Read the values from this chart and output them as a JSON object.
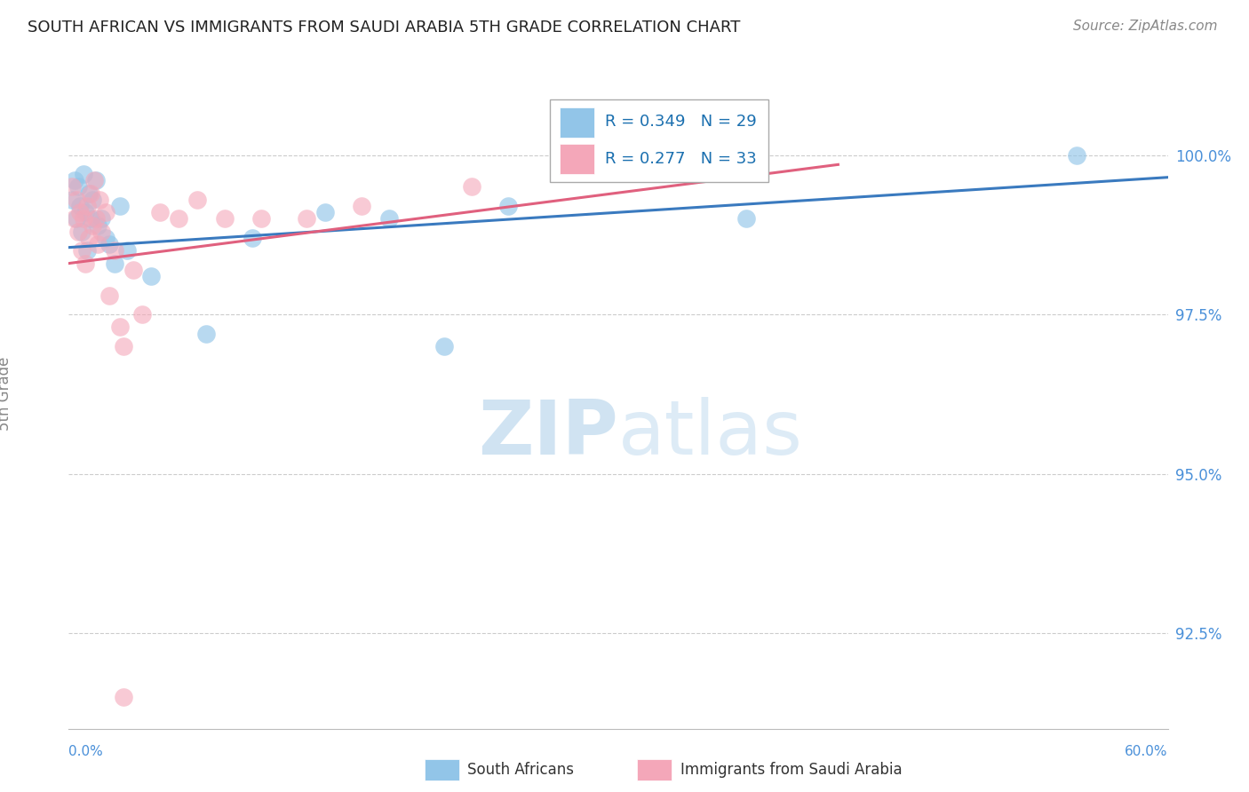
{
  "title": "SOUTH AFRICAN VS IMMIGRANTS FROM SAUDI ARABIA 5TH GRADE CORRELATION CHART",
  "source": "Source: ZipAtlas.com",
  "ylabel": "5th Grade",
  "yticks": [
    100.0,
    97.5,
    95.0,
    92.5
  ],
  "ytick_labels": [
    "100.0%",
    "97.5%",
    "95.0%",
    "92.5%"
  ],
  "xmin": 0.0,
  "xmax": 60.0,
  "ymin": 91.0,
  "ymax": 101.5,
  "blue_R": 0.349,
  "blue_N": 29,
  "pink_R": 0.277,
  "pink_N": 33,
  "blue_color": "#92c5e8",
  "pink_color": "#f4a7b9",
  "blue_line_color": "#3a7abf",
  "pink_line_color": "#e0607e",
  "title_color": "#222222",
  "source_color": "#888888",
  "ylabel_color": "#888888",
  "grid_color": "#cccccc",
  "background_color": "#ffffff",
  "watermark_color": "#dce9f5",
  "south_africans_x": [
    0.2,
    0.3,
    0.4,
    0.5,
    0.6,
    0.7,
    0.8,
    0.9,
    1.0,
    1.1,
    1.2,
    1.3,
    1.5,
    1.6,
    1.8,
    2.0,
    2.2,
    2.5,
    2.8,
    3.2,
    4.5,
    7.5,
    10.0,
    14.0,
    17.5,
    20.5,
    24.0,
    37.0,
    55.0
  ],
  "south_africans_y": [
    99.3,
    99.6,
    99.0,
    99.5,
    99.2,
    98.8,
    99.7,
    99.1,
    98.5,
    99.4,
    99.0,
    99.3,
    99.6,
    98.9,
    99.0,
    98.7,
    98.6,
    98.3,
    99.2,
    98.5,
    98.1,
    97.2,
    98.7,
    99.1,
    99.0,
    97.0,
    99.2,
    99.0,
    100.0
  ],
  "saudi_x": [
    0.2,
    0.3,
    0.4,
    0.5,
    0.6,
    0.7,
    0.8,
    0.9,
    1.0,
    1.1,
    1.2,
    1.3,
    1.4,
    1.5,
    1.6,
    1.7,
    1.8,
    2.0,
    2.2,
    2.5,
    2.8,
    3.0,
    3.5,
    4.0,
    5.0,
    6.0,
    7.0,
    8.5,
    10.5,
    13.0,
    16.0,
    22.0,
    3.0
  ],
  "saudi_y": [
    99.5,
    99.0,
    99.3,
    98.8,
    99.1,
    98.5,
    99.0,
    98.3,
    99.2,
    98.7,
    99.4,
    98.9,
    99.6,
    99.0,
    98.6,
    99.3,
    98.8,
    99.1,
    97.8,
    98.5,
    97.3,
    97.0,
    98.2,
    97.5,
    99.1,
    99.0,
    99.3,
    99.0,
    99.0,
    99.0,
    99.2,
    99.5,
    91.5
  ],
  "blue_trendline_x": [
    0.0,
    60.0
  ],
  "blue_trendline_y": [
    98.55,
    99.65
  ],
  "pink_trendline_x": [
    0.0,
    42.0
  ],
  "pink_trendline_y": [
    98.3,
    99.85
  ]
}
